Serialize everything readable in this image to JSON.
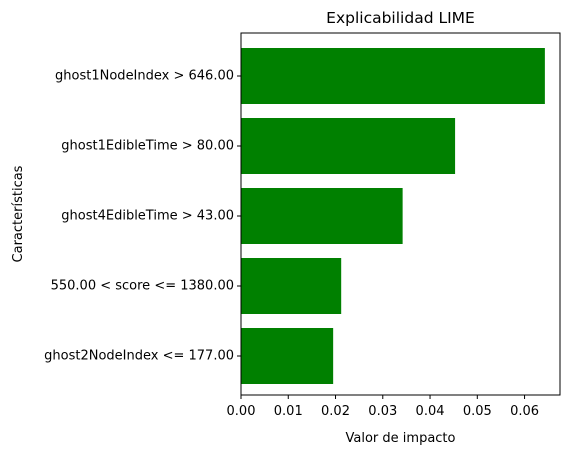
{
  "chart_data": {
    "type": "bar",
    "orientation": "horizontal",
    "title": "Explicabilidad LIME",
    "xlabel": "Valor de impacto",
    "ylabel": "Características",
    "categories": [
      "ghost1NodeIndex > 646.00",
      "ghost1EdibleTime > 80.00",
      "ghost4EdibleTime > 43.00",
      "550.00 < score <= 1380.00",
      "ghost2NodeIndex <= 177.00"
    ],
    "values": [
      0.0643,
      0.0453,
      0.0342,
      0.0212,
      0.0195
    ],
    "xlim": [
      0,
      0.0675
    ],
    "xticks": [
      "0.00",
      "0.01",
      "0.02",
      "0.03",
      "0.04",
      "0.05",
      "0.06"
    ],
    "bar_color": "#008000",
    "grid": false,
    "legend": "none"
  }
}
